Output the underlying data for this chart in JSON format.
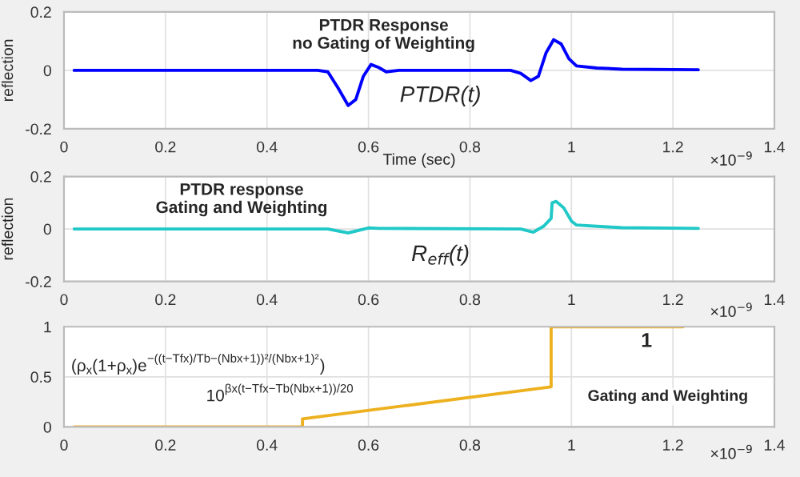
{
  "chart_data": [
    {
      "type": "line",
      "xlabel": "Time (sec)",
      "ylabel": "reflection",
      "annotations": [
        "PTDR Response\nno Gating of Weighting",
        "PTDR(t)",
        "×10$^{−9}$"
      ],
      "x": [
        0.02,
        0.5,
        0.52,
        0.54,
        0.56,
        0.575,
        0.59,
        0.605,
        0.62,
        0.635,
        0.66,
        0.88,
        0.9,
        0.92,
        0.935,
        0.95,
        0.965,
        0.98,
        0.995,
        1.01,
        1.05,
        1.1,
        1.25
      ],
      "series": [
        {
          "color": "#0000ff",
          "values": [
            0,
            0,
            -0.005,
            -0.06,
            -0.12,
            -0.1,
            -0.02,
            0.02,
            0.01,
            -0.005,
            0,
            0,
            -0.01,
            -0.035,
            -0.02,
            0.06,
            0.105,
            0.09,
            0.04,
            0.015,
            0.008,
            0.004,
            0.002
          ]
        }
      ],
      "xlim": [
        0,
        1.4
      ],
      "xticks": [
        0,
        0.2,
        0.4,
        0.6,
        0.8,
        1,
        1.2,
        1.4
      ],
      "ylim": [
        -0.2,
        0.2
      ],
      "yticks": [
        -0.2,
        0,
        0.2
      ],
      "grid": true,
      "line_style": "solid"
    },
    {
      "type": "line",
      "ylabel": "reflection",
      "annotations": [
        "PTDR response\nGating and Weighting",
        "R$_{eff}$(t)",
        "×10$^{−9}$"
      ],
      "x": [
        0.02,
        0.52,
        0.56,
        0.6,
        0.62,
        0.9,
        0.925,
        0.945,
        0.96,
        0.962,
        0.97,
        0.985,
        1.0,
        1.01,
        1.05,
        1.1,
        1.25
      ],
      "series": [
        {
          "color": "#20c8c8",
          "values": [
            0,
            0,
            -0.015,
            0.004,
            0.002,
            0,
            -0.012,
            0.01,
            0.04,
            0.1,
            0.105,
            0.08,
            0.03,
            0.015,
            0.01,
            0.005,
            0.002
          ]
        }
      ],
      "xlim": [
        0,
        1.4
      ],
      "xticks": [
        0,
        0.2,
        0.4,
        0.6,
        0.8,
        1,
        1.2,
        1.4
      ],
      "ylim": [
        -0.2,
        0.2
      ],
      "yticks": [
        -0.2,
        0,
        0.2
      ],
      "grid": true,
      "line_style": "solid"
    },
    {
      "type": "line",
      "annotations": [
        "(ρ$_{x}$(1+ρ$_{x}$)e$^{−((t−Tfx)/Tb−(Nbx+1))²/(Nbx+1)²}$)",
        "10$^{βx(t−Tfx−Tb(Nbx+1))/20}$",
        "1",
        "Gating and Weighting",
        "×10$^{−9}$"
      ],
      "x": [
        0.02,
        0.47,
        0.47,
        0.96,
        0.96,
        1.22
      ],
      "series": [
        {
          "color": "#edb120",
          "values": [
            0,
            0,
            0.08,
            0.4,
            1,
            1
          ]
        }
      ],
      "xlim": [
        0,
        1.4
      ],
      "xticks": [
        0,
        0.2,
        0.4,
        0.6,
        0.8,
        1,
        1.2,
        1.4
      ],
      "ylim": [
        0,
        1
      ],
      "yticks": [
        0,
        0.5,
        1
      ],
      "grid": true,
      "line_style": "solid"
    }
  ]
}
